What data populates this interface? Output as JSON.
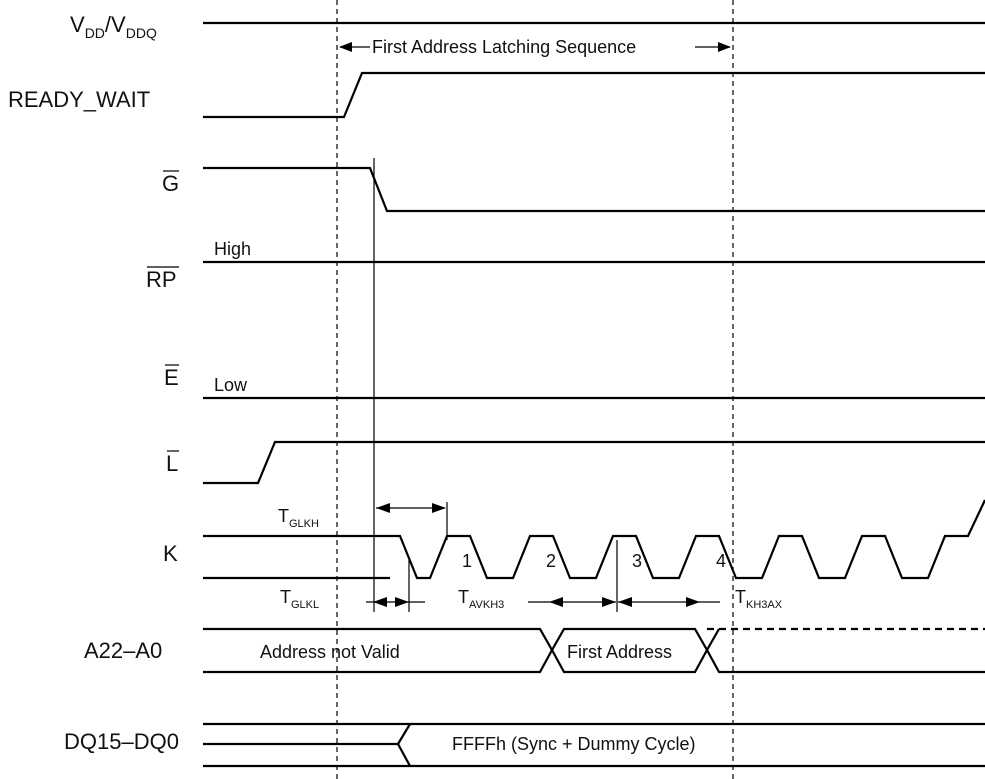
{
  "signals": {
    "vdd": {
      "main": "V",
      "sub1": "DD",
      "slash": "/V",
      "sub2": "DDQ"
    },
    "ready_wait": "READY_WAIT",
    "g": "G",
    "rp": "RP",
    "e": "E",
    "l": "L",
    "k": "K",
    "addr": "A22–A0",
    "dq": "DQ15–DQ0"
  },
  "annotations": {
    "latching_sequence": "First Address Latching Sequence",
    "high": "High",
    "low": "Low",
    "addr_not_valid": "Address not Valid",
    "first_address": "First Address",
    "dq_value": "FFFFh (Sync + Dummy Cycle)"
  },
  "timing": {
    "tglkh": {
      "t": "T",
      "sub": "GLKH"
    },
    "tglkl": {
      "t": "T",
      "sub": "GLKL"
    },
    "tavkh3": {
      "t": "T",
      "sub": "AVKH3"
    },
    "tkh3ax": {
      "t": "T",
      "sub": "KH3AX"
    }
  },
  "clock_edges": [
    "1",
    "2",
    "3",
    "4"
  ]
}
